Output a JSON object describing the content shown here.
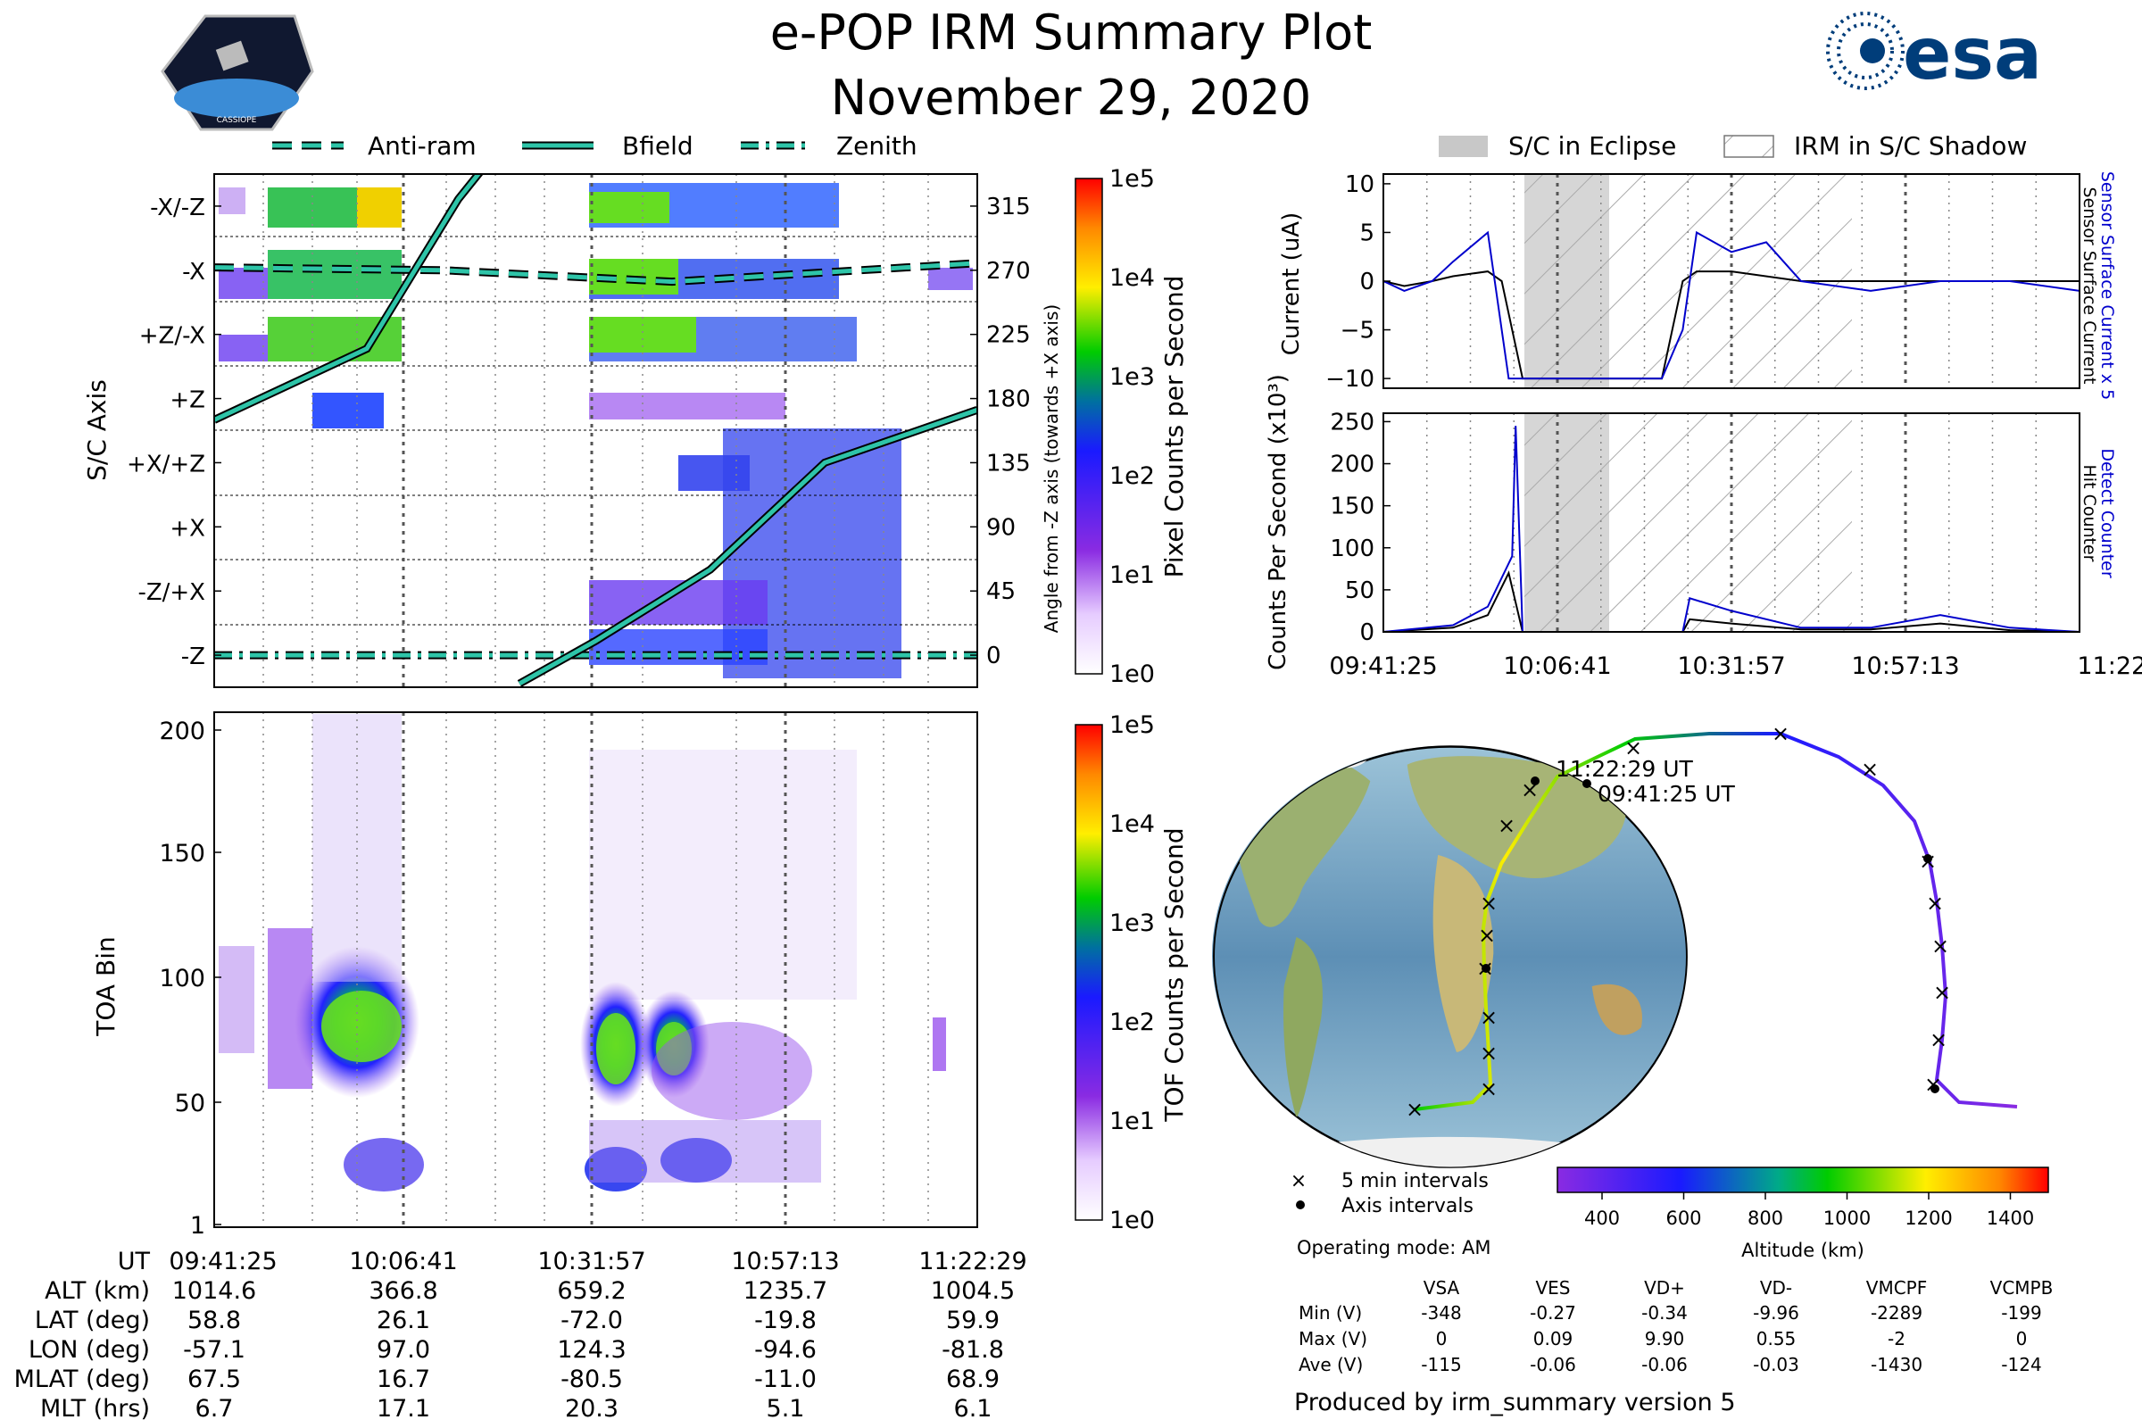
{
  "header": {
    "title": "e-POP IRM Summary Plot",
    "date": "November 29, 2020",
    "logo_left": "CASSIOPE",
    "logo_right": "esa"
  },
  "colors": {
    "antiram": "#2ec4a8",
    "bfield": "#2ec4a8",
    "zenith": "#2ec4a8",
    "eclipse": "#c8c8c8",
    "sensor_current": "#0000cc",
    "detect_counter": "#0000cc",
    "black": "#000000"
  },
  "legend_top_left": {
    "antiram": "Anti-ram",
    "bfield": "Bfield",
    "zenith": "Zenith"
  },
  "legend_top_right": {
    "eclipse": "S/C in Eclipse",
    "shadow": "IRM in S/C Shadow"
  },
  "time_ticks": [
    "09:41:25",
    "10:06:41",
    "10:31:57",
    "10:57:13",
    "11:22:29"
  ],
  "chart_data": [
    {
      "type": "heatmap",
      "name": "sc_axis_pixel",
      "ylabel": "S/C Axis",
      "y_categories": [
        "-X/-Z",
        "-X",
        "+Z/-X",
        "+Z",
        "+X/+Z",
        "+X",
        "-Z/+X",
        "-Z"
      ],
      "right_ylabel": "Angle from -Z axis (towards +X axis)",
      "right_ticks": [
        "315",
        "270",
        "225",
        "180",
        "135",
        "90",
        "45",
        "0"
      ],
      "colorbar_label": "Pixel Counts per Second",
      "colorbar_ticks": [
        "1e5",
        "1e4",
        "1e3",
        "1e2",
        "1e1",
        "1e0"
      ],
      "lines": {
        "antiram_deg": [
          [
            0,
            272
          ],
          [
            0.3,
            270
          ],
          [
            0.6,
            262
          ],
          [
            1.0,
            275
          ]
        ],
        "zenith_deg": [
          [
            0,
            0
          ],
          [
            1.0,
            0
          ]
        ],
        "bfield_deg": [
          [
            0,
            165
          ],
          [
            0.2,
            215
          ],
          [
            0.32,
            320
          ],
          [
            0.38,
            360
          ],
          [
            0.4,
            -20
          ],
          [
            0.5,
            10
          ],
          [
            0.65,
            60
          ],
          [
            0.8,
            135
          ],
          [
            1.0,
            172
          ]
        ]
      }
    },
    {
      "type": "heatmap",
      "name": "toa_tof",
      "ylabel": "TOA Bin",
      "yticks": [
        "200",
        "150",
        "100",
        "50",
        "1"
      ],
      "colorbar_label": "TOF Counts per Second",
      "colorbar_ticks": [
        "1e5",
        "1e4",
        "1e3",
        "1e2",
        "1e1",
        "1e0"
      ]
    },
    {
      "type": "line",
      "name": "current",
      "ylabel": "Current (uA)",
      "yticks": [
        "10",
        "5",
        "0",
        "−5",
        "−10"
      ],
      "ylim": [
        -11,
        11
      ],
      "right_label_blue": "Sensor Surface Current x 5",
      "right_label_black": "Sensor Surface Current",
      "series": [
        {
          "name": "Sensor Surface Current",
          "x": [
            0,
            0.03,
            0.07,
            0.1,
            0.15,
            0.17,
            0.2,
            0.3,
            0.33,
            0.36,
            0.4,
            0.43,
            0.45,
            0.5,
            0.6,
            0.7,
            0.8,
            1.0
          ],
          "values": [
            0,
            -0.5,
            0,
            0.5,
            1,
            0,
            -10,
            -10,
            -10,
            -10,
            -10,
            0,
            1,
            1,
            0,
            0,
            0,
            0
          ]
        },
        {
          "name": "Sensor Surface Current x 5",
          "x": [
            0,
            0.03,
            0.07,
            0.1,
            0.15,
            0.18,
            0.2,
            0.33,
            0.4,
            0.43,
            0.45,
            0.5,
            0.55,
            0.6,
            0.7,
            0.8,
            0.9,
            1.0
          ],
          "values": [
            0,
            -1,
            0,
            2,
            5,
            -10,
            -10,
            -10,
            -10,
            -5,
            5,
            3,
            4,
            0,
            -1,
            0,
            0,
            -1
          ]
        }
      ]
    },
    {
      "type": "line",
      "name": "counts",
      "ylabel": "Counts Per Second (x10³)",
      "yticks": [
        "250",
        "200",
        "150",
        "100",
        "50",
        "0"
      ],
      "ylim": [
        0,
        260
      ],
      "right_label_blue": "Detect Counter",
      "right_label_black": "Hit Counter",
      "series": [
        {
          "name": "Hit Counter",
          "x": [
            0,
            0.1,
            0.15,
            0.18,
            0.2,
            0.21,
            0.3,
            0.43,
            0.44,
            0.5,
            0.6,
            0.7,
            0.8,
            0.9,
            1.0
          ],
          "values": [
            0,
            5,
            20,
            70,
            0,
            0,
            0,
            0,
            15,
            10,
            3,
            3,
            10,
            2,
            0
          ]
        },
        {
          "name": "Detect Counter",
          "x": [
            0,
            0.1,
            0.15,
            0.185,
            0.19,
            0.2,
            0.3,
            0.43,
            0.44,
            0.5,
            0.6,
            0.7,
            0.8,
            0.9,
            1.0
          ],
          "values": [
            0,
            8,
            30,
            90,
            245,
            0,
            0,
            0,
            40,
            25,
            5,
            5,
            20,
            5,
            0
          ]
        }
      ]
    },
    {
      "type": "scatter",
      "name": "orbit_map",
      "labels": {
        "end": "11:22:29 UT",
        "start": "09:41:25 UT"
      },
      "colorbar_label": "Altitude (km)",
      "colorbar_ticks": [
        "400",
        "600",
        "800",
        "1000",
        "1200",
        "1400"
      ]
    }
  ],
  "map_legend": {
    "interval5": "5 min intervals",
    "axis": "Axis intervals",
    "mode": "Operating mode: AM"
  },
  "ephemeris": {
    "rows": [
      {
        "label": "UT",
        "values": [
          "09:41:25",
          "10:06:41",
          "10:31:57",
          "10:57:13",
          "11:22:29"
        ]
      },
      {
        "label": "ALT (km)",
        "values": [
          "1014.6",
          "366.8",
          "659.2",
          "1235.7",
          "1004.5"
        ]
      },
      {
        "label": "LAT (deg)",
        "values": [
          "58.8",
          "26.1",
          "-72.0",
          "-19.8",
          "59.9"
        ]
      },
      {
        "label": "LON (deg)",
        "values": [
          "-57.1",
          "97.0",
          "124.3",
          "-94.6",
          "-81.8"
        ]
      },
      {
        "label": "MLAT (deg)",
        "values": [
          "67.5",
          "16.7",
          "-80.5",
          "-11.0",
          "68.9"
        ]
      },
      {
        "label": "MLT (hrs)",
        "values": [
          "6.7",
          "17.1",
          "20.3",
          "5.1",
          "6.1"
        ]
      }
    ]
  },
  "voltages": {
    "headers": [
      "VSA",
      "VES",
      "VD+",
      "VD-",
      "VMCPF",
      "VCMPB"
    ],
    "rows": [
      {
        "label": "Min (V)",
        "values": [
          "-348",
          "-0.27",
          "-0.34",
          "-9.96",
          "-2289",
          "-199"
        ]
      },
      {
        "label": "Max (V)",
        "values": [
          "0",
          "0.09",
          "9.90",
          "0.55",
          "-2",
          "0"
        ]
      },
      {
        "label": "Ave (V)",
        "values": [
          "-115",
          "-0.06",
          "-0.06",
          "-0.03",
          "-1430",
          "-124"
        ]
      }
    ]
  },
  "footer": "Produced by irm_summary version 5"
}
